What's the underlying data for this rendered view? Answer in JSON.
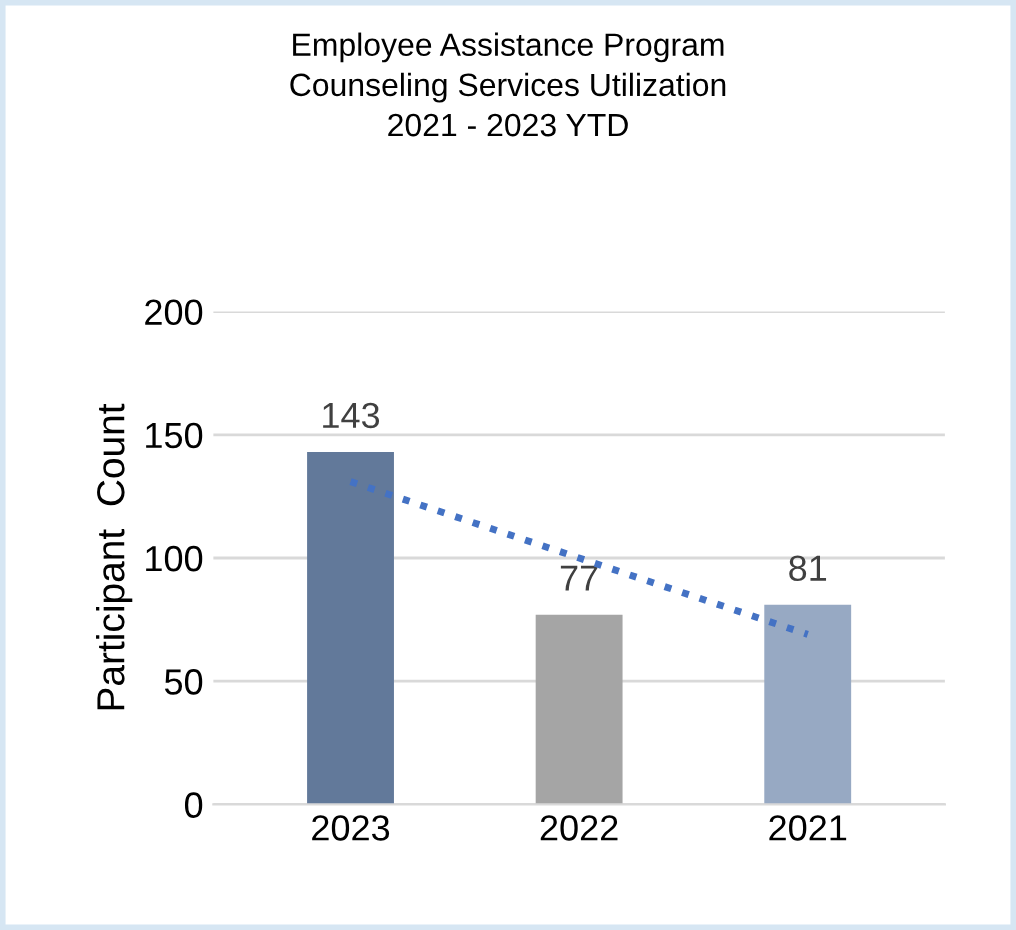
{
  "chart_data": {
    "type": "bar",
    "title": "Employee Assistance Program\nCounseling Services Utilization\n2021 - 2023 YTD",
    "ylabel": "Participant  Count",
    "categories": [
      "2023",
      "2022",
      "2021"
    ],
    "series": [
      {
        "colors": [
          "#62799a",
          "#a5a5a5",
          "#97a9c3"
        ],
        "values": [
          143,
          77,
          81
        ],
        "value_labels": [
          "143",
          "77",
          "81"
        ]
      },
      {
        "type": "line",
        "color": "#4472c4",
        "line_style": "dotted",
        "values": [
          131,
          100,
          69
        ]
      }
    ],
    "ylim": [
      0,
      200
    ],
    "yticks": [
      0,
      50,
      100,
      150,
      200
    ],
    "grid": "y",
    "legend": false
  }
}
